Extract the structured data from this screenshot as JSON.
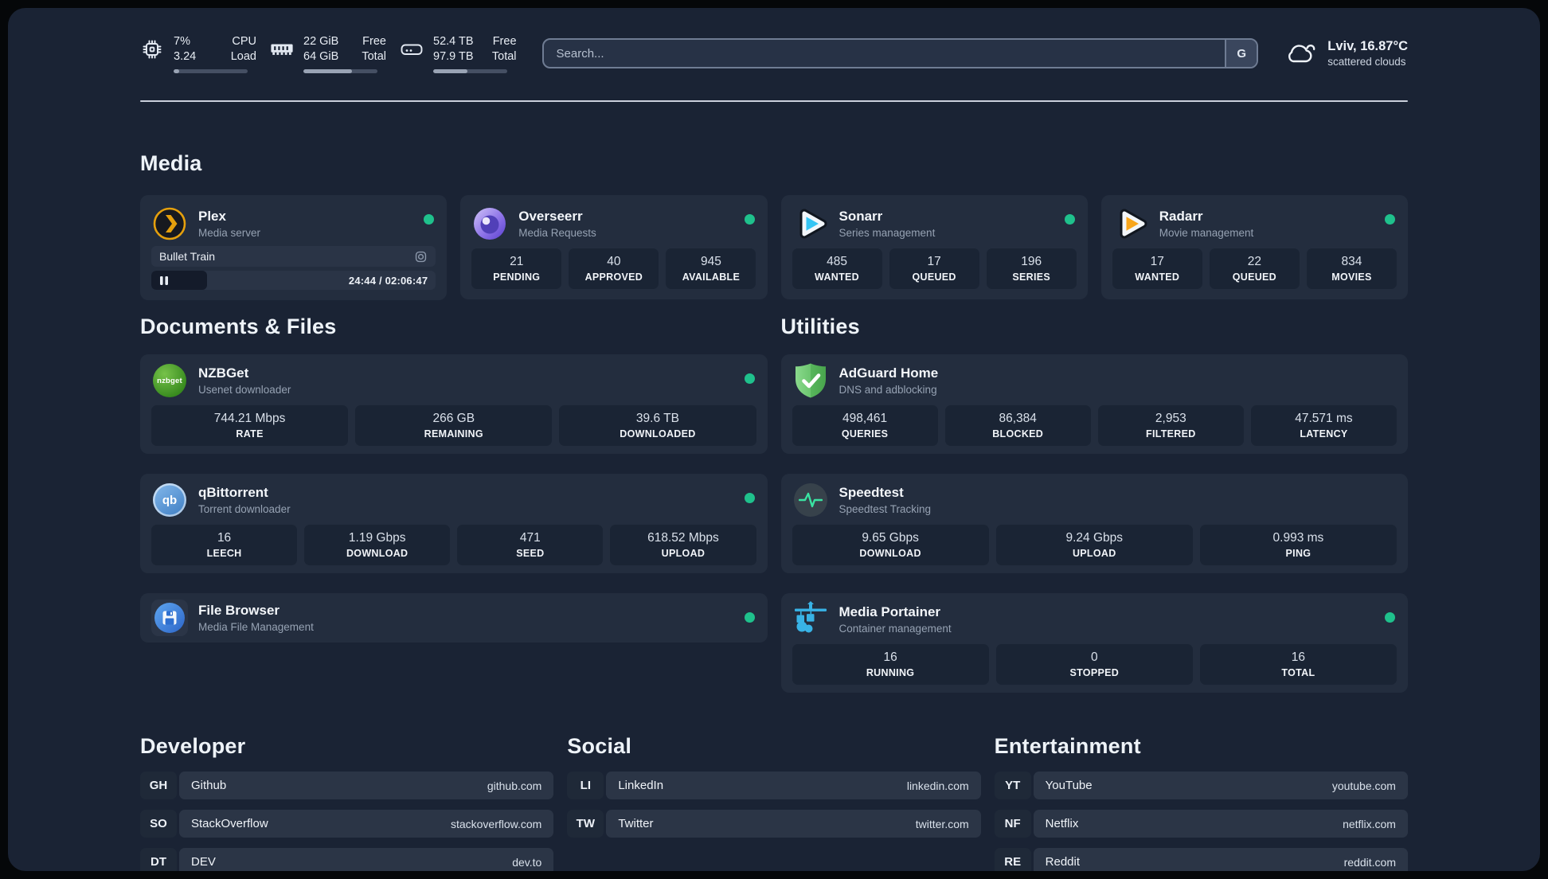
{
  "system": {
    "cpu": {
      "primary": "7%",
      "secondary": "3.24",
      "label_primary": "CPU",
      "label_secondary": "Load",
      "progress_pct": 7
    },
    "memory": {
      "primary": "22 GiB",
      "secondary": "64 GiB",
      "label_primary": "Free",
      "label_secondary": "Total",
      "progress_pct": 66
    },
    "storage": {
      "primary": "52.4 TB",
      "secondary": "97.9 TB",
      "label_primary": "Free",
      "label_secondary": "Total",
      "progress_pct": 46
    }
  },
  "search": {
    "placeholder": "Search...",
    "button_label": "G"
  },
  "weather": {
    "location_temp": "Lviv, 16.87°C",
    "condition": "scattered clouds"
  },
  "media": {
    "title": "Media",
    "cards": [
      {
        "name": "Plex",
        "subtitle": "Media server",
        "icon": "plex-icon",
        "online": true,
        "now_playing": {
          "title": "Bullet Train",
          "time": "24:44 / 02:06:47",
          "progress_pct": 19.5
        },
        "stats": []
      },
      {
        "name": "Overseerr",
        "subtitle": "Media Requests",
        "icon": "overseerr-icon",
        "online": true,
        "stats": [
          {
            "value": "21",
            "label": "PENDING"
          },
          {
            "value": "40",
            "label": "APPROVED"
          },
          {
            "value": "945",
            "label": "AVAILABLE"
          }
        ]
      },
      {
        "name": "Sonarr",
        "subtitle": "Series management",
        "icon": "sonarr-icon",
        "online": true,
        "stats": [
          {
            "value": "485",
            "label": "WANTED"
          },
          {
            "value": "17",
            "label": "QUEUED"
          },
          {
            "value": "196",
            "label": "SERIES"
          }
        ]
      },
      {
        "name": "Radarr",
        "subtitle": "Movie management",
        "icon": "radarr-icon",
        "online": true,
        "stats": [
          {
            "value": "17",
            "label": "WANTED"
          },
          {
            "value": "22",
            "label": "QUEUED"
          },
          {
            "value": "834",
            "label": "MOVIES"
          }
        ]
      }
    ]
  },
  "documents": {
    "title": "Documents & Files",
    "cards": [
      {
        "name": "NZBGet",
        "subtitle": "Usenet downloader",
        "icon": "nzbget-icon",
        "online": true,
        "stats": [
          {
            "value": "744.21 Mbps",
            "label": "RATE"
          },
          {
            "value": "266 GB",
            "label": "REMAINING"
          },
          {
            "value": "39.6 TB",
            "label": "DOWNLOADED"
          }
        ]
      },
      {
        "name": "qBittorrent",
        "subtitle": "Torrent downloader",
        "icon": "qbittorrent-icon",
        "online": true,
        "stats": [
          {
            "value": "16",
            "label": "LEECH"
          },
          {
            "value": "1.19 Gbps",
            "label": "DOWNLOAD"
          },
          {
            "value": "471",
            "label": "SEED"
          },
          {
            "value": "618.52 Mbps",
            "label": "UPLOAD"
          }
        ]
      },
      {
        "name": "File Browser",
        "subtitle": "Media File Management",
        "icon": "filebrowser-icon",
        "online": true,
        "stats": []
      }
    ]
  },
  "utilities": {
    "title": "Utilities",
    "cards": [
      {
        "name": "AdGuard Home",
        "subtitle": "DNS and adblocking",
        "icon": "adguard-icon",
        "online": false,
        "stats": [
          {
            "value": "498,461",
            "label": "QUERIES"
          },
          {
            "value": "86,384",
            "label": "BLOCKED"
          },
          {
            "value": "2,953",
            "label": "FILTERED"
          },
          {
            "value": "47.571 ms",
            "label": "LATENCY"
          }
        ]
      },
      {
        "name": "Speedtest",
        "subtitle": "Speedtest Tracking",
        "icon": "speedtest-icon",
        "online": false,
        "stats": [
          {
            "value": "9.65 Gbps",
            "label": "DOWNLOAD"
          },
          {
            "value": "9.24 Gbps",
            "label": "UPLOAD"
          },
          {
            "value": "0.993 ms",
            "label": "PING"
          }
        ]
      },
      {
        "name": "Media Portainer",
        "subtitle": "Container management",
        "icon": "portainer-icon",
        "online": true,
        "stats": [
          {
            "value": "16",
            "label": "RUNNING"
          },
          {
            "value": "0",
            "label": "STOPPED"
          },
          {
            "value": "16",
            "label": "TOTAL"
          }
        ]
      }
    ]
  },
  "bookmarks": [
    {
      "title": "Developer",
      "items": [
        {
          "abbr": "GH",
          "name": "Github",
          "url": "github.com"
        },
        {
          "abbr": "SO",
          "name": "StackOverflow",
          "url": "stackoverflow.com"
        },
        {
          "abbr": "DT",
          "name": "DEV",
          "url": "dev.to"
        }
      ]
    },
    {
      "title": "Social",
      "items": [
        {
          "abbr": "LI",
          "name": "LinkedIn",
          "url": "linkedin.com"
        },
        {
          "abbr": "TW",
          "name": "Twitter",
          "url": "twitter.com"
        }
      ]
    },
    {
      "title": "Entertainment",
      "items": [
        {
          "abbr": "YT",
          "name": "YouTube",
          "url": "youtube.com"
        },
        {
          "abbr": "NF",
          "name": "Netflix",
          "url": "netflix.com"
        },
        {
          "abbr": "RE",
          "name": "Reddit",
          "url": "reddit.com"
        }
      ]
    }
  ],
  "colors": {
    "status_online": "#1fc18c",
    "plex_amber": "#e5a00d",
    "page_bg": "#1a2334",
    "card_bg": "#232d3e"
  }
}
